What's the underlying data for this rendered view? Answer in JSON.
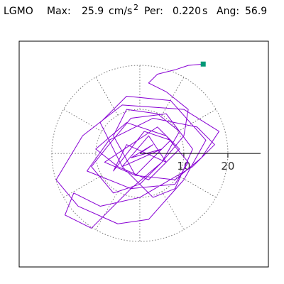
{
  "chart_data": {
    "type": "orbit",
    "title": {
      "station": "LGMO",
      "max_label": "Max:",
      "max_value": 25.9,
      "max_unit": "cm/s",
      "max_unit_power": "2",
      "per_label": "Per:",
      "per_value": {
        "value": 0.22,
        "label": "0.220"
      },
      "per_unit": "s",
      "ang_label": "Ang:",
      "ang_value": 56.9
    },
    "xlim": [
      -27.4,
      29.2
    ],
    "ylim": [
      -25.8,
      25.5
    ],
    "rings": [
      10,
      20
    ],
    "color": "#8800d4",
    "x": [
      0,
      3,
      -2,
      5,
      -4,
      2,
      6,
      -3,
      -6,
      1,
      7,
      -1,
      -8,
      4,
      9,
      2,
      -5,
      -10,
      -3,
      6,
      11,
      8,
      -2,
      -12,
      -7,
      3,
      13,
      17,
      12,
      0,
      -9,
      -15,
      -17,
      -11,
      -2,
      5,
      9,
      4,
      -3,
      -6,
      -1,
      8,
      14,
      18,
      10,
      -4,
      -13,
      -19,
      -14,
      -5,
      2,
      10,
      15,
      7,
      -3,
      -9,
      -4,
      3,
      8,
      12,
      6,
      -2,
      -7,
      -11,
      -6,
      0,
      5,
      10,
      11,
      6,
      2,
      4,
      8,
      11,
      14.4
    ],
    "y": [
      0,
      2,
      -1,
      1,
      -3,
      4,
      -2,
      2,
      -4,
      5,
      3,
      -5,
      -2,
      6,
      1,
      -6,
      -3,
      1,
      7,
      4,
      -2,
      -7,
      -8,
      -4,
      3,
      8,
      6,
      2,
      -3,
      -10,
      -12,
      -9,
      -14,
      -17,
      -8,
      -2,
      5,
      9,
      10,
      4,
      -5,
      -6,
      -1,
      5,
      10,
      11,
      4,
      -6,
      -12,
      -16,
      -15,
      -6,
      3,
      12,
      13,
      7,
      -3,
      -10,
      -8,
      1,
      9,
      8,
      2,
      -3,
      -9,
      -7,
      -2,
      4,
      10,
      14,
      16,
      18,
      19,
      20,
      20.3
    ],
    "end_marker": {
      "x": 14.4,
      "y": 20.3,
      "color": "#009977"
    }
  }
}
